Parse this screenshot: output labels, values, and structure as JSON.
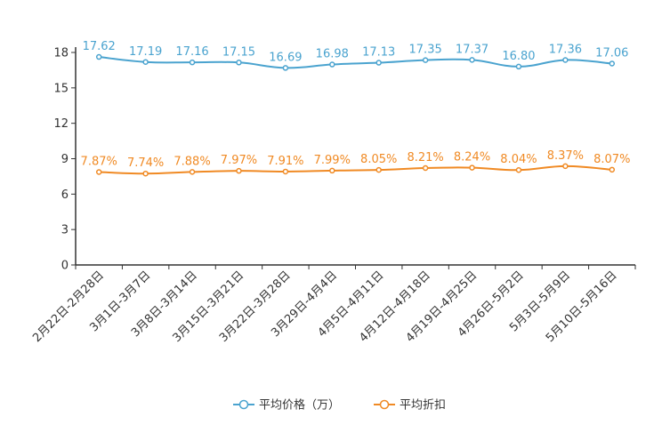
{
  "chart_data": {
    "type": "line",
    "title": "",
    "xlabel": "",
    "ylabel": "",
    "ylim": [
      0,
      18
    ],
    "yticks": [
      0,
      3,
      6,
      9,
      12,
      15,
      18
    ],
    "grid": false,
    "legend_position": "bottom-center",
    "categories": [
      "2月22日-2月28日",
      "3月1日-3月7日",
      "3月8日-3月14日",
      "3月15日-3月21日",
      "3月22日-3月28日",
      "3月29日-4月4日",
      "4月5日-4月11日",
      "4月12日-4月18日",
      "4月19日-4月25日",
      "4月26日-5月2日",
      "5月3日-5月9日",
      "5月10日-5月16日"
    ],
    "series": [
      {
        "name": "平均价格（万）",
        "color": "#4aa3cf",
        "values": [
          17.62,
          17.19,
          17.16,
          17.15,
          16.69,
          16.98,
          17.13,
          17.35,
          17.37,
          16.8,
          17.36,
          17.06
        ],
        "labels": [
          "17.62",
          "17.19",
          "17.16",
          "17.15",
          "16.69",
          "16.98",
          "17.13",
          "17.35",
          "17.37",
          "16.80",
          "17.36",
          "17.06"
        ]
      },
      {
        "name": "平均折扣",
        "color": "#f08a24",
        "values": [
          7.87,
          7.74,
          7.88,
          7.97,
          7.91,
          7.99,
          8.05,
          8.21,
          8.24,
          8.04,
          8.37,
          8.07
        ],
        "labels": [
          "7.87%",
          "7.74%",
          "7.88%",
          "7.97%",
          "7.91%",
          "7.99%",
          "8.05%",
          "8.21%",
          "8.24%",
          "8.04%",
          "8.37%",
          "8.07%"
        ]
      }
    ]
  }
}
